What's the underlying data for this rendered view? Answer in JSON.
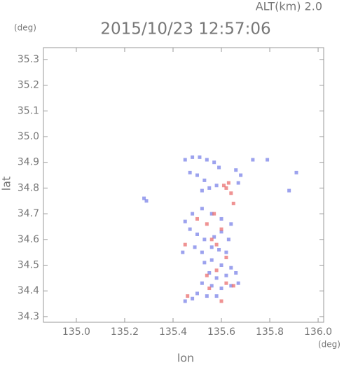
{
  "chart_data": {
    "type": "scatter",
    "title": "2015/10/23 12:57:06",
    "subtitle": "ALT(km) 2.0",
    "x_label": "lon",
    "y_label": "lat",
    "x_unit": "(deg)",
    "y_unit": "(deg)",
    "xlim": [
      134.864,
      136.023
    ],
    "ylim": [
      34.278,
      35.346
    ],
    "xticks": [
      {
        "value": 135,
        "label": "135.0"
      },
      135.2,
      135.4,
      135.6,
      135.8,
      {
        "value": 136,
        "label": "136.0"
      }
    ],
    "yticks": [
      34.3,
      34.4,
      34.5,
      34.6,
      34.7,
      34.8,
      34.9,
      {
        "value": 35,
        "label": "35.0"
      },
      35.1,
      35.2,
      35.3
    ],
    "series": [
      {
        "color": "#7b83e8",
        "x": [
          135.45,
          135.48,
          135.51,
          135.54,
          135.57,
          135.59,
          135.47,
          135.5,
          135.53,
          135.52,
          135.55,
          135.58,
          135.66,
          135.68,
          135.67,
          135.73,
          135.79,
          135.88,
          135.91,
          135.29,
          135.28,
          135.45,
          135.48,
          135.52,
          135.56,
          135.6,
          135.64,
          135.47,
          135.5,
          135.53,
          135.57,
          135.6,
          135.63,
          135.49,
          135.52,
          135.56,
          135.59,
          135.62,
          135.53,
          135.56,
          135.6,
          135.64,
          135.55,
          135.58,
          135.62,
          135.66,
          135.52,
          135.56,
          135.6,
          135.64,
          135.67,
          135.5,
          135.54,
          135.58,
          135.45,
          135.48,
          135.44
        ],
        "y": [
          34.91,
          34.92,
          34.92,
          34.91,
          34.9,
          34.88,
          34.86,
          34.85,
          34.83,
          34.79,
          34.8,
          34.81,
          34.87,
          34.85,
          34.82,
          34.91,
          34.91,
          34.79,
          34.86,
          34.75,
          34.76,
          34.67,
          34.7,
          34.72,
          34.7,
          34.68,
          34.66,
          34.64,
          34.62,
          34.6,
          34.61,
          34.63,
          34.6,
          34.57,
          34.55,
          34.57,
          34.56,
          34.55,
          34.51,
          34.52,
          34.5,
          34.49,
          34.47,
          34.45,
          34.46,
          34.47,
          34.43,
          34.42,
          34.41,
          34.42,
          34.43,
          34.39,
          34.38,
          34.38,
          34.36,
          34.37,
          34.55
        ]
      },
      {
        "color": "#ea6f6f",
        "x": [
          135.63,
          135.62,
          135.64,
          135.61,
          135.65,
          135.57,
          135.54,
          135.6,
          135.56,
          135.58,
          135.45,
          135.62,
          135.58,
          135.54,
          135.62,
          135.65,
          135.55,
          135.46,
          135.6,
          135.5
        ],
        "y": [
          34.82,
          34.8,
          34.78,
          34.81,
          34.74,
          34.7,
          34.66,
          34.64,
          34.6,
          34.58,
          34.58,
          34.53,
          34.48,
          34.46,
          34.43,
          34.42,
          34.41,
          34.38,
          34.36,
          34.68
        ]
      }
    ]
  }
}
